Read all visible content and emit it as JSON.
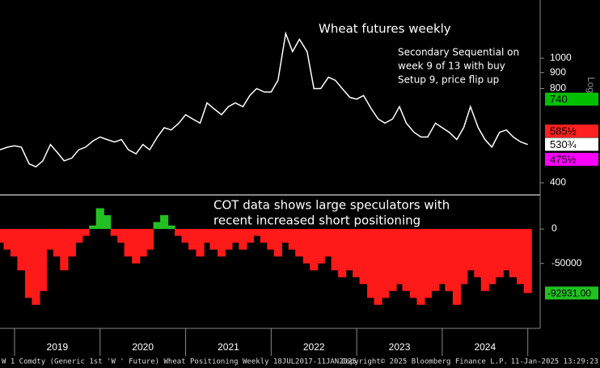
{
  "chart_data": [
    {
      "type": "line",
      "title": "Wheat futures weekly",
      "annotation": [
        "Secondary Sequential on",
        "week 9 of 13 with buy",
        "Setup 9, price flip up"
      ],
      "log_scale": true,
      "color": "#ffffff",
      "axis_label": "Log",
      "ylim": [
        368,
        1535
      ],
      "yticks": [
        400,
        800,
        900,
        1000
      ],
      "price_tags": [
        {
          "value": 740,
          "label": "740",
          "color": "#00c000"
        },
        {
          "value": 585.5,
          "label": "585½",
          "color": "#ff2020"
        },
        {
          "value": 530.75,
          "label": "530¾",
          "color": "#ffffff"
        },
        {
          "value": 475.5,
          "label": "475½",
          "color": "#ff00ff"
        }
      ],
      "x": [
        2018.83,
        2018.92,
        2019.0,
        2019.08,
        2019.17,
        2019.25,
        2019.33,
        2019.42,
        2019.5,
        2019.58,
        2019.67,
        2019.75,
        2019.83,
        2019.92,
        2020.0,
        2020.08,
        2020.17,
        2020.25,
        2020.33,
        2020.42,
        2020.5,
        2020.58,
        2020.67,
        2020.75,
        2020.83,
        2020.92,
        2021.0,
        2021.08,
        2021.17,
        2021.25,
        2021.33,
        2021.42,
        2021.5,
        2021.58,
        2021.67,
        2021.75,
        2021.83,
        2021.92,
        2022.0,
        2022.08,
        2022.17,
        2022.25,
        2022.33,
        2022.42,
        2022.5,
        2022.58,
        2022.67,
        2022.75,
        2022.83,
        2022.92,
        2023.0,
        2023.08,
        2023.17,
        2023.25,
        2023.33,
        2023.42,
        2023.5,
        2023.58,
        2023.67,
        2023.75,
        2023.83,
        2023.92,
        2024.0,
        2024.08,
        2024.17,
        2024.25,
        2024.33,
        2024.42,
        2024.5,
        2024.58,
        2024.67,
        2024.75,
        2024.83,
        2024.92,
        2025.0
      ],
      "values": [
        510,
        520,
        525,
        520,
        460,
        450,
        470,
        530,
        500,
        470,
        480,
        510,
        520,
        545,
        560,
        550,
        540,
        550,
        510,
        495,
        530,
        510,
        560,
        600,
        590,
        620,
        660,
        640,
        620,
        720,
        690,
        660,
        700,
        720,
        700,
        760,
        800,
        780,
        780,
        850,
        1200,
        1050,
        1150,
        1050,
        800,
        800,
        870,
        850,
        800,
        750,
        740,
        760,
        690,
        640,
        620,
        640,
        700,
        620,
        580,
        560,
        560,
        620,
        600,
        580,
        550,
        600,
        700,
        600,
        550,
        520,
        580,
        590,
        560,
        540,
        530
      ]
    },
    {
      "type": "bar",
      "title": "COT data shows large speculators with",
      "subtitle": "recent increased short positioning",
      "positive_color": "#22c022",
      "negative_color": "#ff1a1a",
      "ylim": [
        -143000,
        47000
      ],
      "yticks": [
        0,
        -50000
      ],
      "last_tag": {
        "value": -92931,
        "label": "-92931.00",
        "color": "#22c022"
      },
      "year_labels": [
        "2019",
        "2020",
        "2021",
        "2022",
        "2023",
        "2024"
      ],
      "year_starts": [
        2019,
        2020,
        2021,
        2022,
        2023,
        2024,
        2025
      ],
      "values": [
        -20000,
        -30000,
        -40000,
        -60000,
        -100000,
        -110000,
        -90000,
        -30000,
        -40000,
        -60000,
        -40000,
        -20000,
        -10000,
        5000,
        30000,
        20000,
        -10000,
        -20000,
        -40000,
        -50000,
        -40000,
        -30000,
        10000,
        20000,
        5000,
        -10000,
        -20000,
        -30000,
        -40000,
        -20000,
        -30000,
        -40000,
        -30000,
        -20000,
        -30000,
        -20000,
        -10000,
        -20000,
        -30000,
        -40000,
        -20000,
        -30000,
        -40000,
        -50000,
        -60000,
        -50000,
        -40000,
        -60000,
        -70000,
        -60000,
        -70000,
        -80000,
        -100000,
        -110000,
        -100000,
        -90000,
        -80000,
        -90000,
        -100000,
        -110000,
        -100000,
        -90000,
        -80000,
        -90000,
        -110000,
        -80000,
        -60000,
        -70000,
        -90000,
        -80000,
        -70000,
        -60000,
        -70000,
        -80000,
        -92931
      ]
    }
  ],
  "footer": {
    "left": "W 1 Comdty (Generic 1st 'W ' Future) Wheat Positioning  Weekly 18JUL2017-11JAN2025",
    "center": "Copyright© 2025 Bloomberg Finance L.P.",
    "right": "11-Jan-2025 13:29:23"
  }
}
